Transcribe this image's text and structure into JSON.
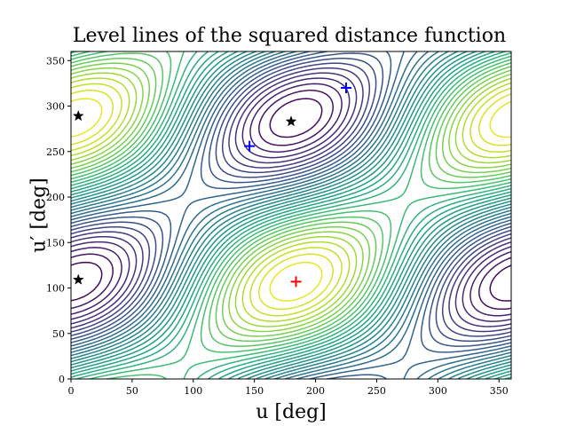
{
  "chart_data": {
    "type": "contour",
    "title": "Level lines of the squared distance function",
    "xlabel": "u [deg]",
    "ylabel": "u′ [deg]",
    "xlim": [
      0,
      360
    ],
    "ylim": [
      0,
      360
    ],
    "xticks": [
      0,
      50,
      100,
      150,
      200,
      250,
      300,
      350
    ],
    "yticks": [
      0,
      50,
      100,
      150,
      200,
      250,
      300,
      350
    ],
    "colormap": "viridis",
    "grid": false,
    "series": [
      {
        "marker": "plus",
        "color": "#ff0000",
        "points": [
          [
            184,
            107
          ]
        ]
      },
      {
        "marker": "plus",
        "color": "#0000ff",
        "points": [
          [
            146,
            256
          ],
          [
            225,
            320
          ]
        ]
      },
      {
        "marker": "star",
        "color": "#000000",
        "points": [
          [
            6,
            289
          ],
          [
            6,
            109
          ],
          [
            180,
            283
          ]
        ]
      }
    ]
  }
}
